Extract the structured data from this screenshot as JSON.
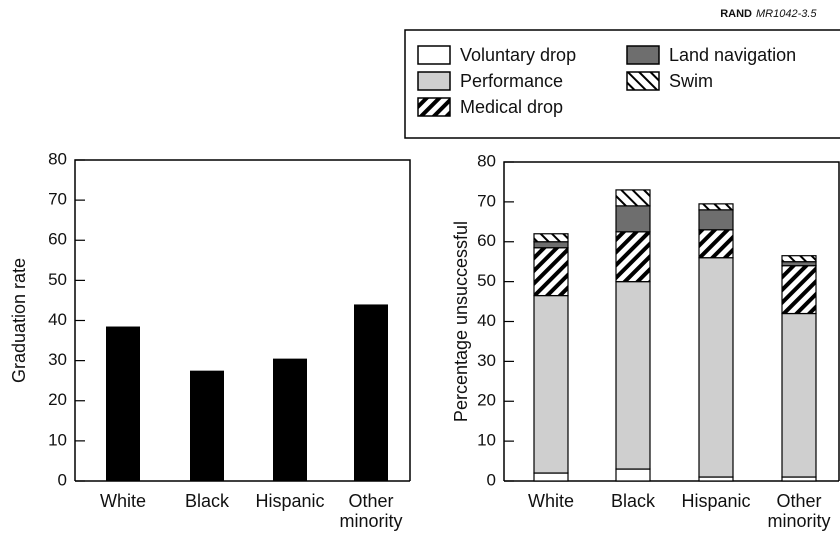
{
  "source": {
    "org": "RAND",
    "id": "MR1042-3.5"
  },
  "chart_data": [
    {
      "type": "bar",
      "ylabel": "Graduation rate",
      "categories": [
        "White",
        "Black",
        "Hispanic",
        "Other minority"
      ],
      "values": [
        38.5,
        27.5,
        30.5,
        44
      ],
      "color": "#000000",
      "ylim": [
        0,
        80
      ],
      "yticks": [
        0,
        10,
        20,
        30,
        40,
        50,
        60,
        70,
        80
      ]
    },
    {
      "type": "stacked_bar",
      "ylabel": "Percentage unsuccessful",
      "categories": [
        "White",
        "Black",
        "Hispanic",
        "Other minority"
      ],
      "series": [
        {
          "name": "Voluntary drop",
          "color": "#ffffff",
          "values": [
            2,
            3,
            1,
            1
          ]
        },
        {
          "name": "Performance",
          "color": "#cfcfcf",
          "values": [
            44.5,
            47,
            55,
            41
          ]
        },
        {
          "name": "Medical drop",
          "color": "#ffffff",
          "hatch": "forward",
          "values": [
            12,
            12.5,
            7,
            12
          ]
        },
        {
          "name": "Land navigation",
          "color": "#6e6e6e",
          "values": [
            1.5,
            6.5,
            5,
            1
          ]
        },
        {
          "name": "Swim",
          "color": "#ffffff",
          "hatch": "backward",
          "values": [
            2,
            4,
            1.5,
            1.5
          ]
        }
      ],
      "ylim": [
        0,
        80
      ],
      "yticks": [
        0,
        10,
        20,
        30,
        40,
        50,
        60,
        70,
        80
      ]
    }
  ]
}
